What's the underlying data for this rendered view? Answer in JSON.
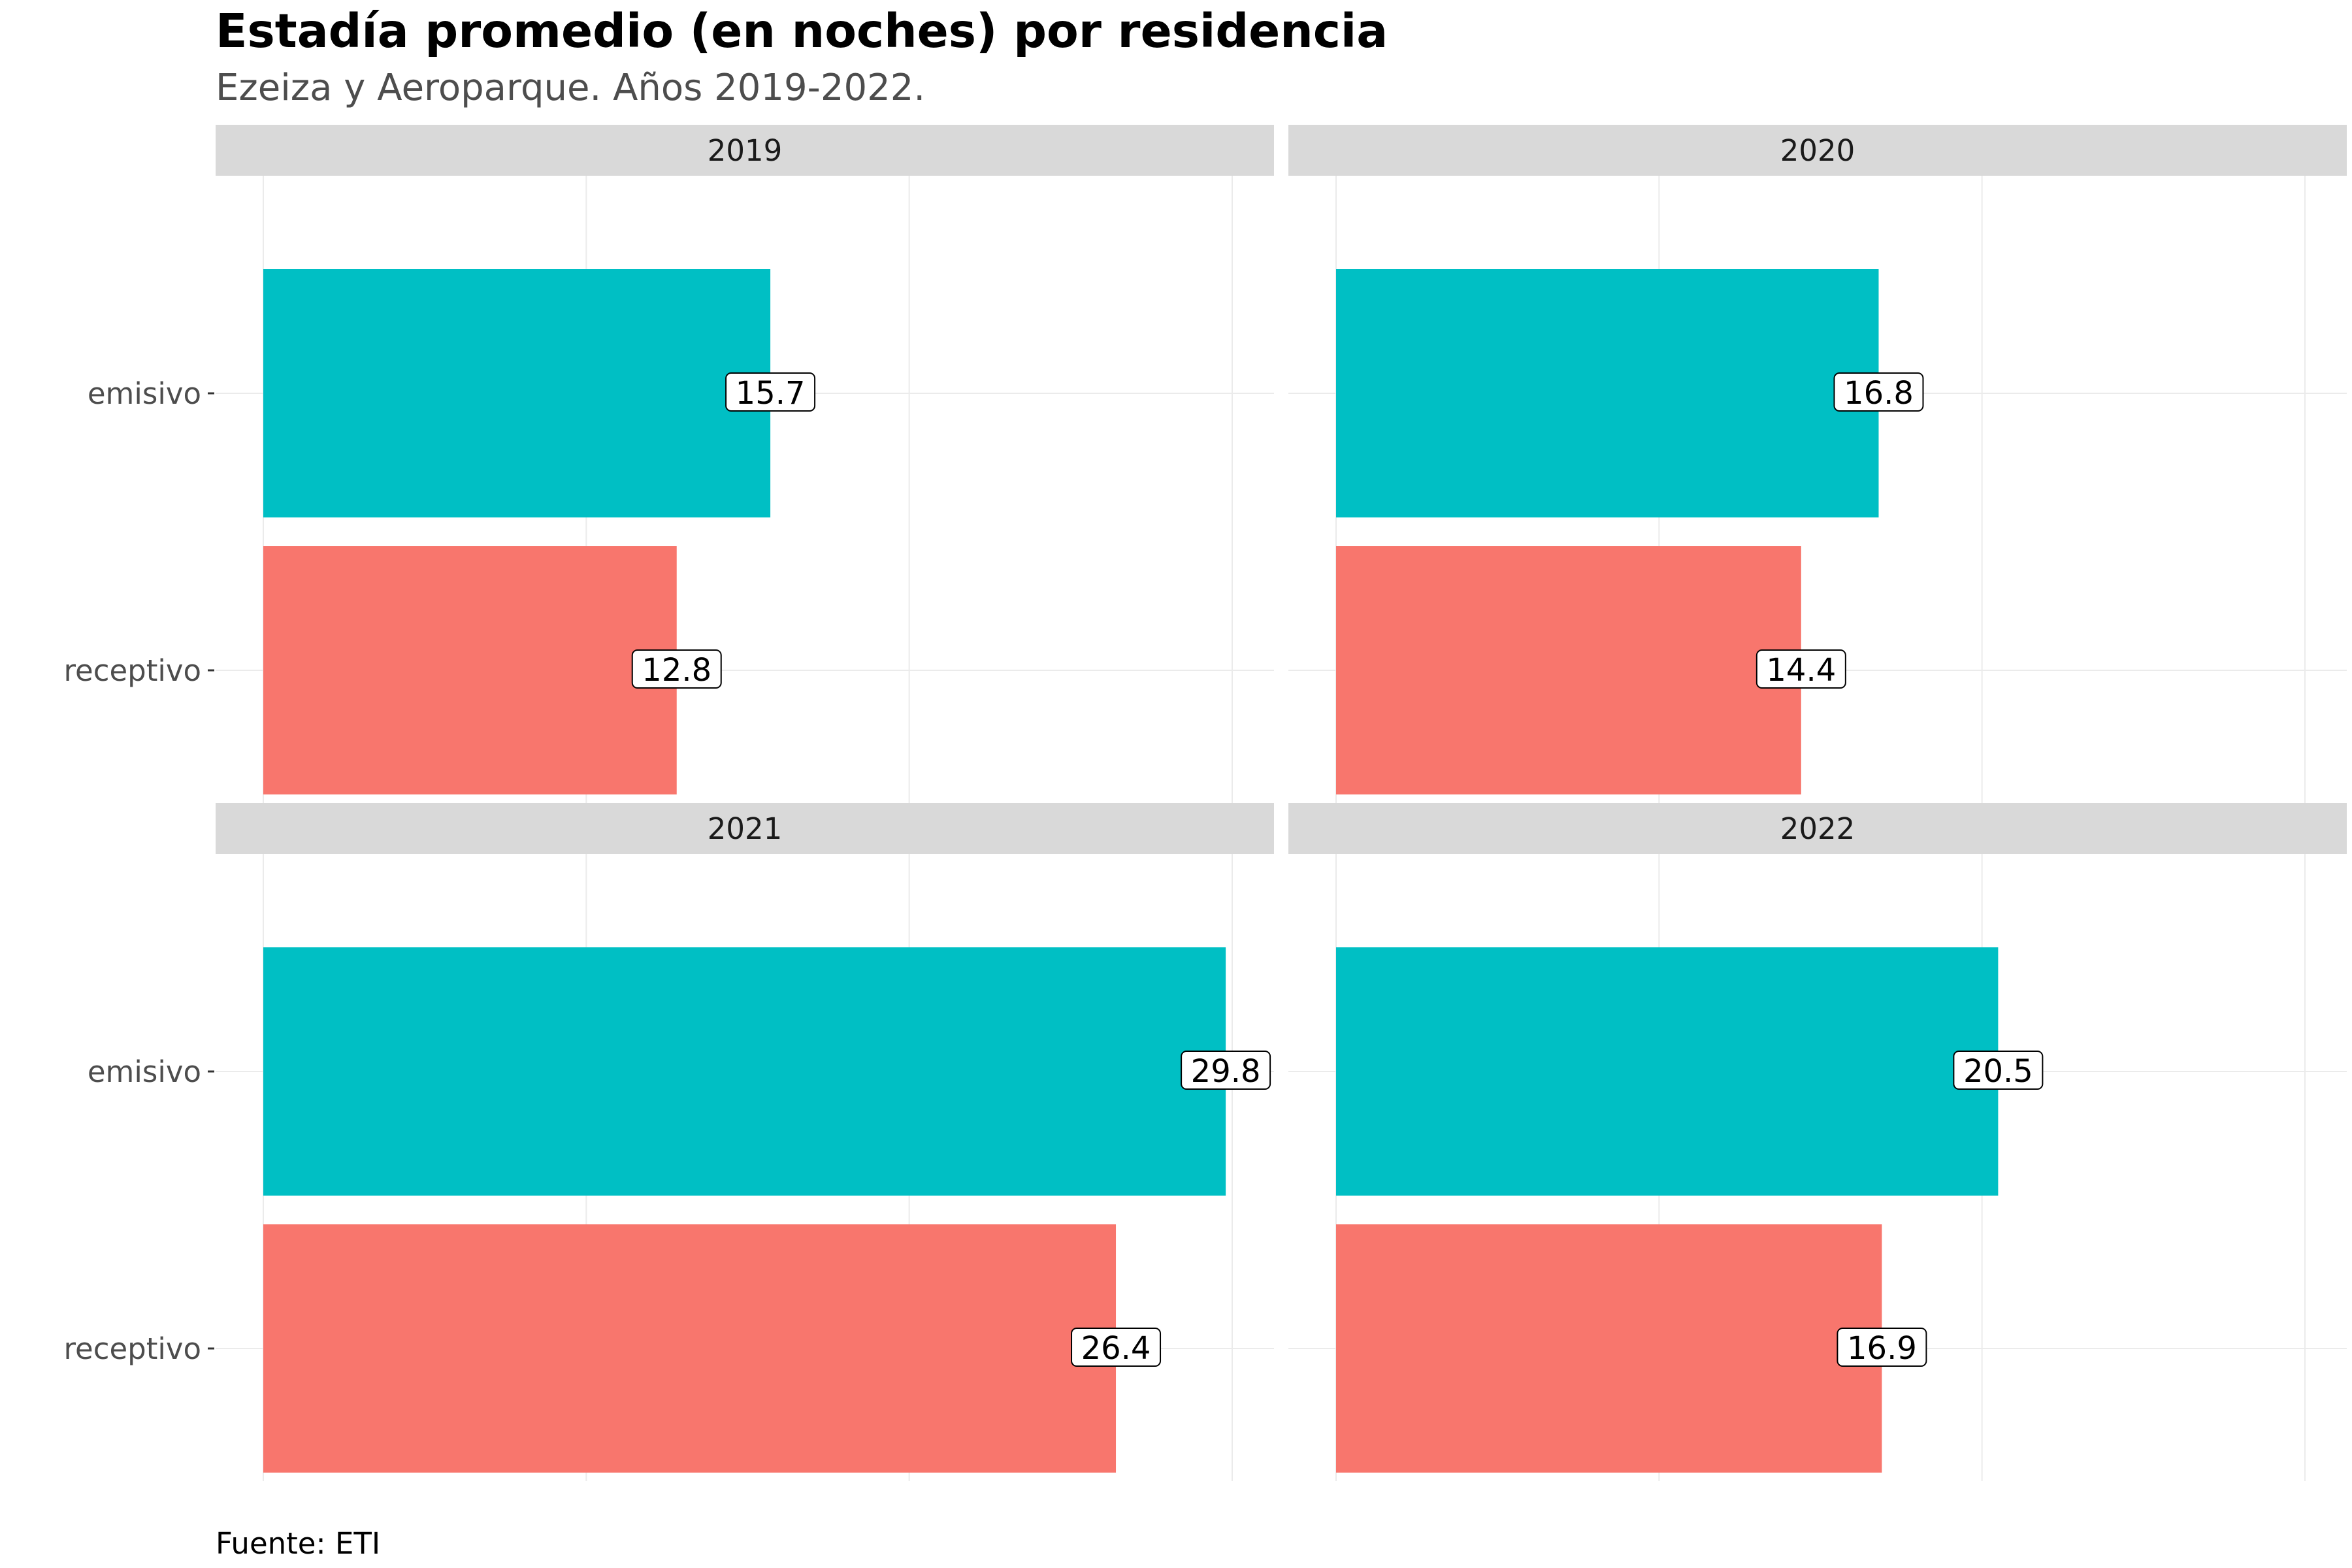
{
  "chart_data": {
    "type": "bar",
    "orientation": "horizontal",
    "title": "Estadía promedio (en noches) por residencia",
    "subtitle": "Ezeiza y Aeroparque. Años 2019-2022.",
    "caption": "Fuente: ETI",
    "categories": [
      "emisivo",
      "receptivo"
    ],
    "xlim": [
      0,
      31.5
    ],
    "grid": true,
    "legend": "none",
    "colors": {
      "emisivo": "#00BFC4",
      "receptivo": "#F8766D"
    },
    "panels": [
      {
        "facet": "2019",
        "values": {
          "emisivo": 15.7,
          "receptivo": 12.8
        },
        "labels": {
          "emisivo": "15.7",
          "receptivo": "12.8"
        }
      },
      {
        "facet": "2020",
        "values": {
          "emisivo": 16.8,
          "receptivo": 14.4
        },
        "labels": {
          "emisivo": "16.8",
          "receptivo": "14.4"
        }
      },
      {
        "facet": "2021",
        "values": {
          "emisivo": 29.8,
          "receptivo": 26.4
        },
        "labels": {
          "emisivo": "29.8",
          "receptivo": "26.4"
        }
      },
      {
        "facet": "2022",
        "values": {
          "emisivo": 20.5,
          "receptivo": 16.9
        },
        "labels": {
          "emisivo": "20.5",
          "receptivo": "16.9"
        }
      }
    ]
  }
}
